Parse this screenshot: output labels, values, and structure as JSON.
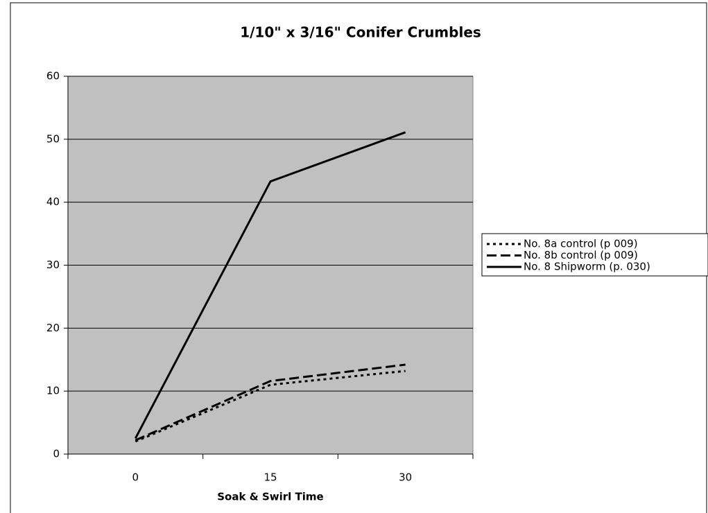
{
  "chart_data": {
    "type": "line",
    "title": "1/10\" x 3/16\" Conifer Crumbles",
    "x_label": "Soak & Swirl Time",
    "categories": [
      "0",
      "15",
      "30"
    ],
    "series": [
      {
        "name": "No. 8a control (p 009)",
        "color": "#000000",
        "dash": "dotted",
        "values": [
          2,
          11,
          13.2
        ]
      },
      {
        "name": "No. 8b control (p 009)",
        "color": "#000000",
        "dash": "dashed",
        "values": [
          2.2,
          11.6,
          14.2
        ]
      },
      {
        "name": "No. 8 Shipworm (p. 030)",
        "color": "#000000",
        "dash": "solid",
        "values": [
          2.5,
          43.3,
          51.1
        ]
      }
    ],
    "ylim": [
      0,
      60
    ],
    "yticks": [
      0,
      10,
      20,
      30,
      40,
      50,
      60
    ],
    "grid": true,
    "legend": "right"
  }
}
